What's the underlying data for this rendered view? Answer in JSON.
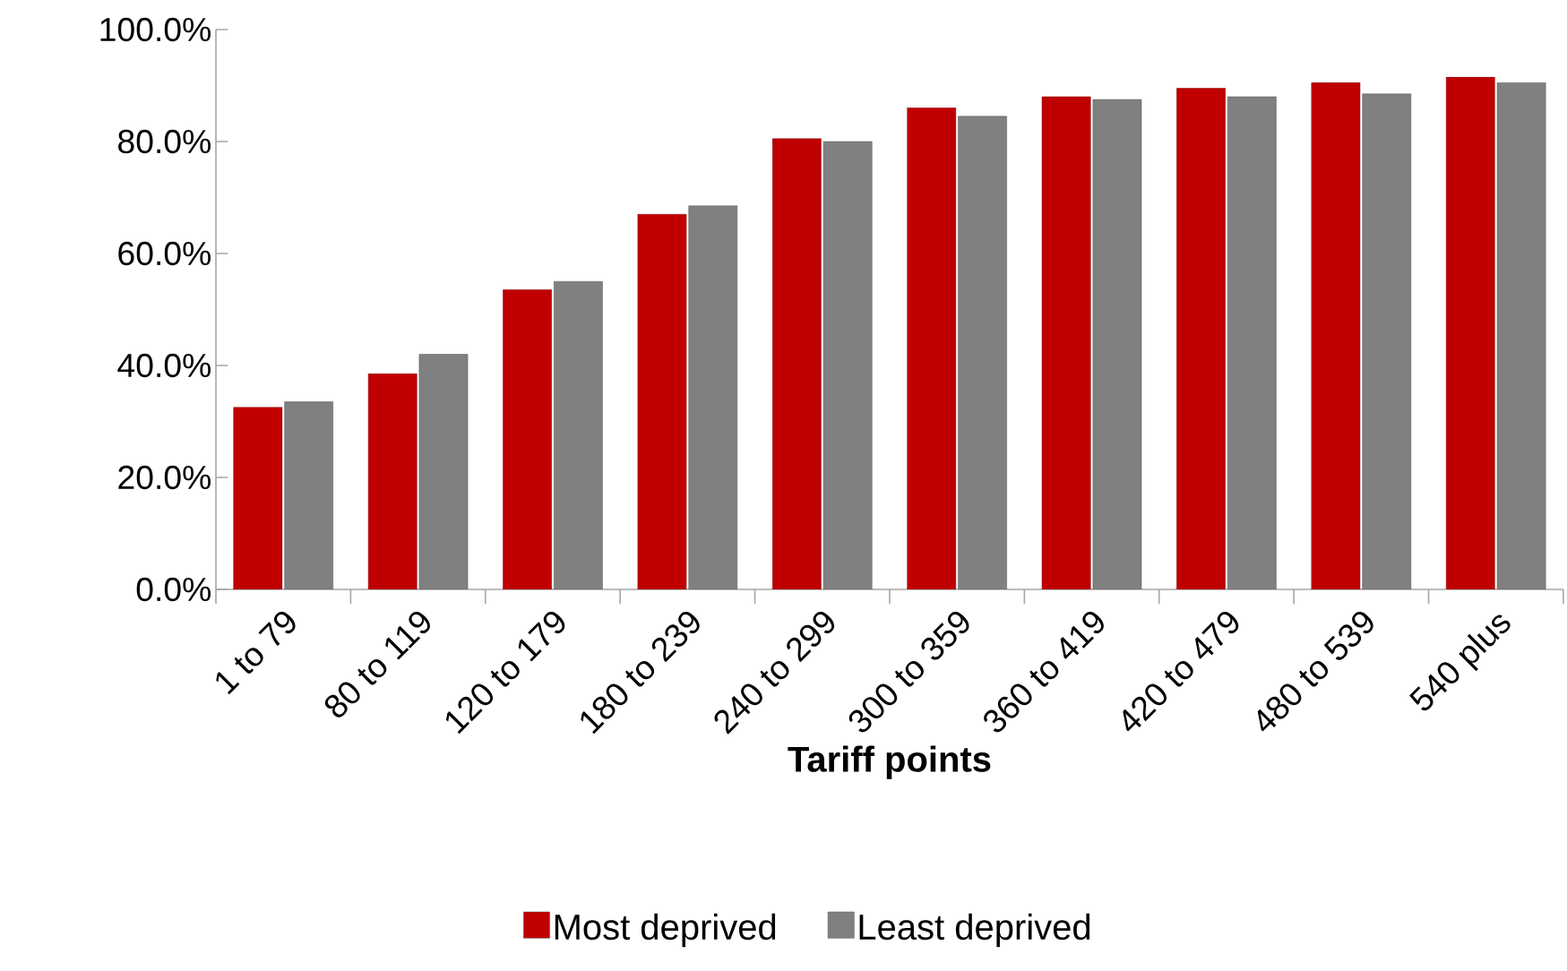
{
  "chart_data": {
    "type": "bar",
    "xlabel": "Tariff points",
    "categories": [
      "1 to 79",
      "80 to 119",
      "120 to 179",
      "180 to 239",
      "240 to 299",
      "300 to 359",
      "360 to 419",
      "420 to 479",
      "480 to 539",
      "540 plus"
    ],
    "series": [
      {
        "name": "Most deprived",
        "color": "#c00000",
        "values": [
          32.5,
          38.5,
          53.5,
          67,
          80.5,
          86,
          88,
          89.5,
          90.5,
          91.5
        ]
      },
      {
        "name": "Least deprived",
        "color": "#808080",
        "values": [
          33.5,
          42,
          55,
          68.5,
          80,
          84.5,
          87.5,
          88,
          88.5,
          90.5
        ]
      }
    ],
    "ylim": [
      0,
      100
    ],
    "yticks": [
      {
        "value": 0,
        "label": "0.0%"
      },
      {
        "value": 20,
        "label": "20.0%"
      },
      {
        "value": 40,
        "label": "40.0%"
      },
      {
        "value": 60,
        "label": "60.0%"
      },
      {
        "value": 80,
        "label": "80.0%"
      },
      {
        "value": 100,
        "label": "100.0%"
      }
    ],
    "grid": false,
    "legend": "bottom"
  }
}
